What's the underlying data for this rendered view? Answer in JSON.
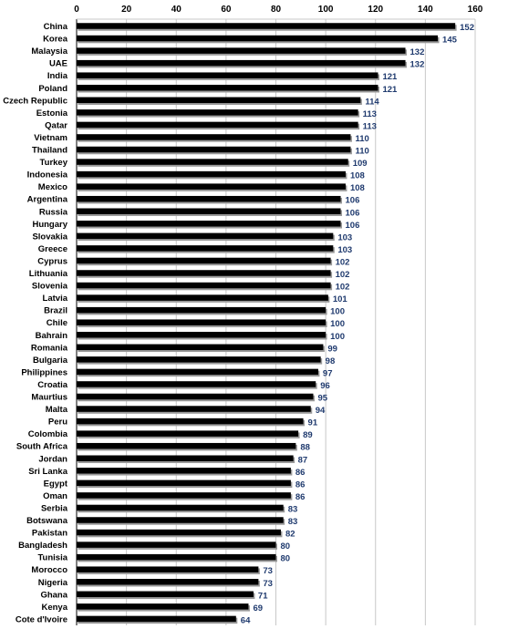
{
  "chart_data": {
    "type": "bar",
    "orientation": "horizontal",
    "title": "",
    "xlabel": "",
    "ylabel": "",
    "xlim": [
      0,
      160
    ],
    "ticks": [
      0,
      20,
      40,
      60,
      80,
      100,
      120,
      140,
      160
    ],
    "tick_labels": [
      "0",
      "20",
      "40",
      "60",
      "80",
      "100",
      "120",
      "140",
      "160"
    ],
    "axis_position": "top",
    "grid": true,
    "legend": "none",
    "colors": {
      "bar": "#000000",
      "bar_shadow": "#9a9a9a",
      "data_label": "#1f3a6e",
      "grid": "#c8c8c8"
    },
    "categories": [
      "China",
      "Korea",
      "Malaysia",
      "UAE",
      "India",
      "Poland",
      "Czech Republic",
      "Estonia",
      "Qatar",
      "Vietnam",
      "Thailand",
      "Turkey",
      "Indonesia",
      "Mexico",
      "Argentina",
      "Russia",
      "Hungary",
      "Slovakia",
      "Greece",
      "Cyprus",
      "Lithuania",
      "Slovenia",
      "Latvia",
      "Brazil",
      "Chile",
      "Bahrain",
      "Romania",
      "Bulgaria",
      "Philippines",
      "Croatia",
      "Maurtius",
      "Malta",
      "Peru",
      "Colombia",
      "South Africa",
      "Jordan",
      "Sri Lanka",
      "Egypt",
      "Oman",
      "Serbia",
      "Botswana",
      "Pakistan",
      "Bangladesh",
      "Tunisia",
      "Morocco",
      "Nigeria",
      "Ghana",
      "Kenya",
      "Cote d'Ivoire"
    ],
    "values": [
      152,
      145,
      132,
      132,
      121,
      121,
      114,
      113,
      113,
      110,
      110,
      109,
      108,
      108,
      106,
      106,
      106,
      103,
      103,
      102,
      102,
      102,
      101,
      100,
      100,
      100,
      99,
      98,
      97,
      96,
      95,
      94,
      91,
      89,
      88,
      87,
      86,
      86,
      86,
      83,
      83,
      82,
      80,
      80,
      73,
      73,
      71,
      69,
      64
    ]
  }
}
